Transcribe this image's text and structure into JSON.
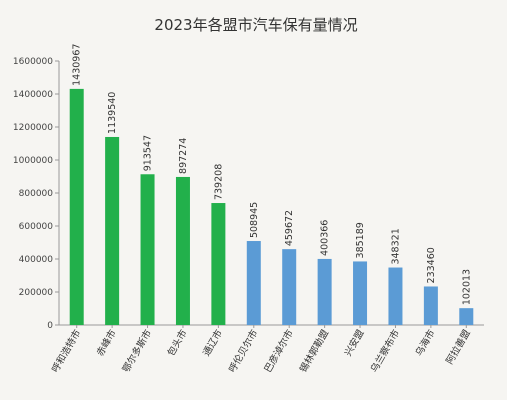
{
  "chart_data": {
    "type": "bar",
    "title": "2023年各盟市汽车保有量情况",
    "xlabel": "",
    "ylabel": "",
    "ylim": [
      0,
      1600000
    ],
    "yticks": [
      0,
      200000,
      400000,
      600000,
      800000,
      1000000,
      1200000,
      1400000,
      1600000
    ],
    "grid": false,
    "legend": "none",
    "categories": [
      "呼和浩特市",
      "赤峰市",
      "鄂尔多斯市",
      "包头市",
      "通辽市",
      "呼伦贝尔市",
      "巴彦淖尔市",
      "锡林郭勒盟",
      "兴安盟",
      "乌兰察布市",
      "乌海市",
      "阿拉善盟"
    ],
    "values": [
      1430967,
      1139540,
      913547,
      897274,
      739208,
      508945,
      459672,
      400366,
      385189,
      348321,
      233460,
      102013
    ],
    "colors": [
      "#22b04b",
      "#22b04b",
      "#22b04b",
      "#22b04b",
      "#22b04b",
      "#5b9bd5",
      "#5b9bd5",
      "#5b9bd5",
      "#5b9bd5",
      "#5b9bd5",
      "#5b9bd5",
      "#5b9bd5"
    ]
  }
}
